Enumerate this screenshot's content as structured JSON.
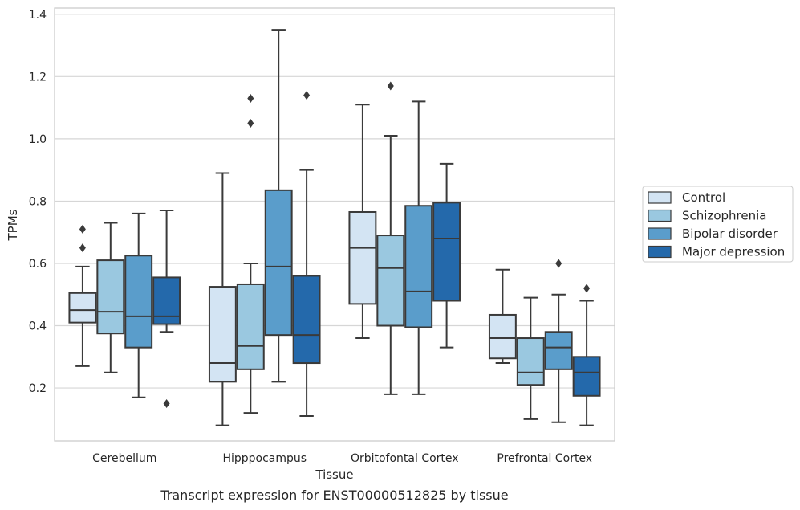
{
  "chart_data": {
    "type": "box",
    "xlabel": "Tissue",
    "ylabel": "TPMs",
    "caption": "Transcript expression for ENST00000512825 by tissue",
    "ylim": [
      0.03,
      1.42
    ],
    "yticks": [
      "0.2",
      "0.4",
      "0.6",
      "0.8",
      "1.0",
      "1.2",
      "1.4"
    ],
    "grid": "horizontal",
    "legend_position": "outside-right",
    "categories": [
      "Cerebellum",
      "Hipppocampus",
      "Orbitofontal Cortex",
      "Prefrontal Cortex"
    ],
    "series": [
      {
        "name": "Control",
        "color": "#d3e4f3",
        "boxes": [
          {
            "whisker_low": 0.27,
            "q1": 0.41,
            "median": 0.45,
            "q3": 0.505,
            "whisker_high": 0.59,
            "outliers": [
              0.65,
              0.71
            ]
          },
          {
            "whisker_low": 0.08,
            "q1": 0.22,
            "median": 0.28,
            "q3": 0.525,
            "whisker_high": 0.89,
            "outliers": []
          },
          {
            "whisker_low": 0.36,
            "q1": 0.47,
            "median": 0.65,
            "q3": 0.765,
            "whisker_high": 1.11,
            "outliers": []
          },
          {
            "whisker_low": 0.28,
            "q1": 0.295,
            "median": 0.36,
            "q3": 0.435,
            "whisker_high": 0.58,
            "outliers": []
          }
        ]
      },
      {
        "name": "Schizophrenia",
        "color": "#9ac8e0",
        "boxes": [
          {
            "whisker_low": 0.25,
            "q1": 0.375,
            "median": 0.445,
            "q3": 0.61,
            "whisker_high": 0.73,
            "outliers": []
          },
          {
            "whisker_low": 0.12,
            "q1": 0.26,
            "median": 0.335,
            "q3": 0.533,
            "whisker_high": 0.6,
            "outliers": [
              1.05,
              1.13
            ]
          },
          {
            "whisker_low": 0.18,
            "q1": 0.4,
            "median": 0.585,
            "q3": 0.69,
            "whisker_high": 1.01,
            "outliers": [
              1.17
            ]
          },
          {
            "whisker_low": 0.1,
            "q1": 0.21,
            "median": 0.25,
            "q3": 0.36,
            "whisker_high": 0.49,
            "outliers": []
          }
        ]
      },
      {
        "name": "Bipolar disorder",
        "color": "#5a9dcb",
        "boxes": [
          {
            "whisker_low": 0.17,
            "q1": 0.33,
            "median": 0.43,
            "q3": 0.625,
            "whisker_high": 0.76,
            "outliers": []
          },
          {
            "whisker_low": 0.22,
            "q1": 0.37,
            "median": 0.59,
            "q3": 0.835,
            "whisker_high": 1.35,
            "outliers": []
          },
          {
            "whisker_low": 0.18,
            "q1": 0.395,
            "median": 0.51,
            "q3": 0.785,
            "whisker_high": 1.12,
            "outliers": []
          },
          {
            "whisker_low": 0.09,
            "q1": 0.26,
            "median": 0.33,
            "q3": 0.38,
            "whisker_high": 0.5,
            "outliers": [
              0.6
            ]
          }
        ]
      },
      {
        "name": "Major depression",
        "color": "#2469ab",
        "boxes": [
          {
            "whisker_low": 0.38,
            "q1": 0.405,
            "median": 0.43,
            "q3": 0.555,
            "whisker_high": 0.77,
            "outliers": [
              0.15
            ]
          },
          {
            "whisker_low": 0.11,
            "q1": 0.28,
            "median": 0.37,
            "q3": 0.56,
            "whisker_high": 0.9,
            "outliers": [
              1.14
            ]
          },
          {
            "whisker_low": 0.33,
            "q1": 0.48,
            "median": 0.68,
            "q3": 0.795,
            "whisker_high": 0.92,
            "outliers": []
          },
          {
            "whisker_low": 0.08,
            "q1": 0.175,
            "median": 0.25,
            "q3": 0.3,
            "whisker_high": 0.48,
            "outliers": [
              0.52
            ]
          }
        ]
      }
    ]
  }
}
